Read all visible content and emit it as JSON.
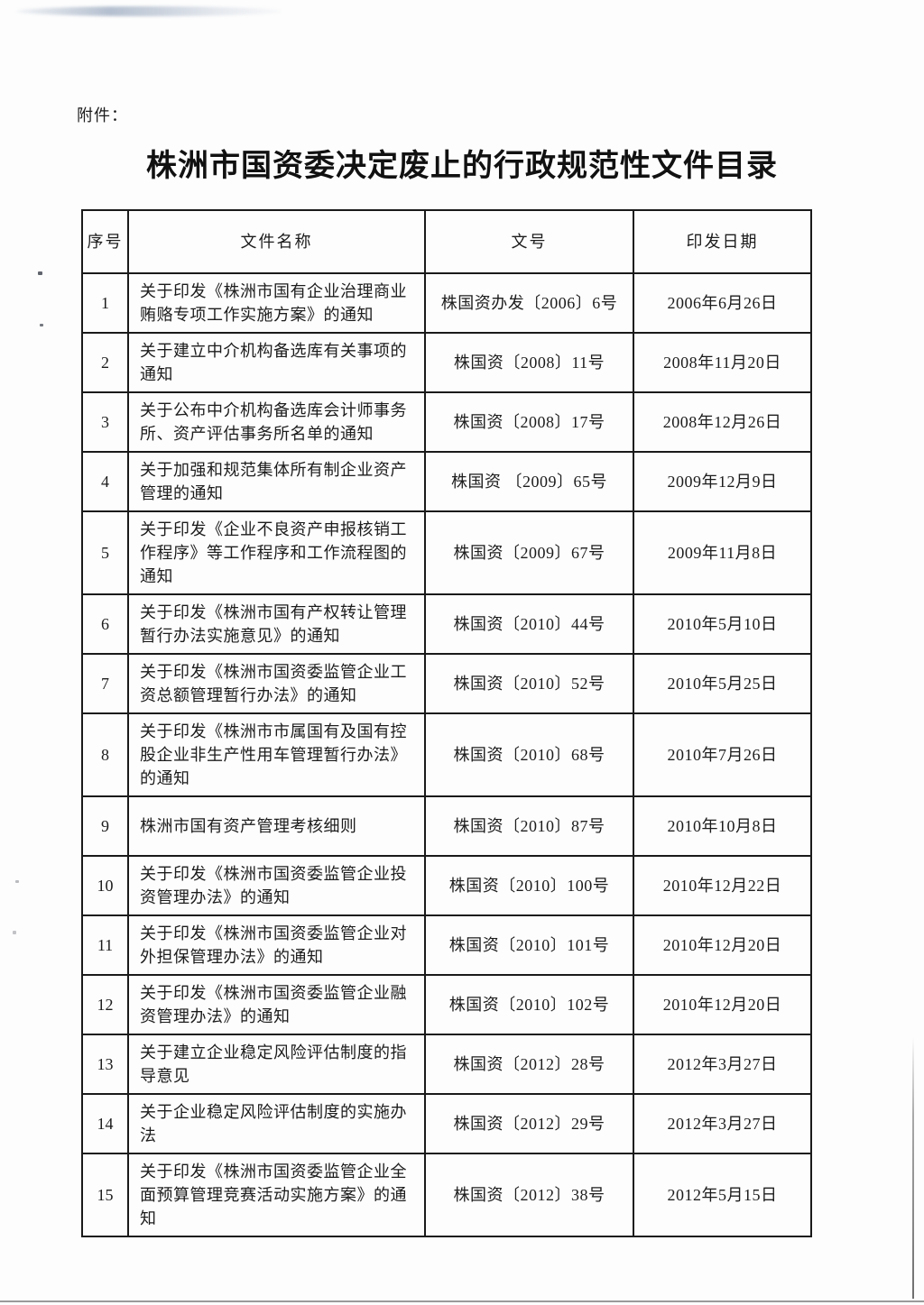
{
  "page": {
    "attachment_label": "附件：",
    "title": "株洲市国资委决定废止的行政规范性文件目录"
  },
  "table": {
    "headers": {
      "no": "序号",
      "name": "文件名称",
      "doc_no": "文号",
      "date": "印发日期"
    },
    "rows": [
      {
        "no": "1",
        "name": "关于印发《株洲市国有企业治理商业贿赂专项工作实施方案》的通知",
        "doc_no": "株国资办发〔2006〕6号",
        "date": "2006年6月26日"
      },
      {
        "no": "2",
        "name": "关于建立中介机构备选库有关事项的通知",
        "doc_no": "株国资〔2008〕11号",
        "date": "2008年11月20日"
      },
      {
        "no": "3",
        "name": "关于公布中介机构备选库会计师事务所、资产评估事务所名单的通知",
        "doc_no": "株国资〔2008〕17号",
        "date": "2008年12月26日"
      },
      {
        "no": "4",
        "name": "关于加强和规范集体所有制企业资产管理的通知",
        "doc_no": "株国资 〔2009〕65号",
        "date": "2009年12月9日"
      },
      {
        "no": "5",
        "name": "关于印发《企业不良资产申报核销工作程序》等工作程序和工作流程图的通知",
        "doc_no": "株国资〔2009〕67号",
        "date": "2009年11月8日"
      },
      {
        "no": "6",
        "name": "关于印发《株洲市国有产权转让管理暂行办法实施意见》的通知",
        "doc_no": "株国资〔2010〕44号",
        "date": "2010年5月10日"
      },
      {
        "no": "7",
        "name": "关于印发《株洲市国资委监管企业工资总额管理暂行办法》的通知",
        "doc_no": "株国资〔2010〕52号",
        "date": "2010年5月25日"
      },
      {
        "no": "8",
        "name": "关于印发《株洲市市属国有及国有控股企业非生产性用车管理暂行办法》的通知",
        "doc_no": "株国资〔2010〕68号",
        "date": "2010年7月26日"
      },
      {
        "no": "9",
        "name": "株洲市国有资产管理考核细则",
        "doc_no": "株国资〔2010〕87号",
        "date": "2010年10月8日"
      },
      {
        "no": "10",
        "name": "关于印发《株洲市国资委监管企业投资管理办法》的通知",
        "doc_no": "株国资〔2010〕100号",
        "date": "2010年12月22日"
      },
      {
        "no": "11",
        "name": "关于印发《株洲市国资委监管企业对外担保管理办法》的通知",
        "doc_no": "株国资〔2010〕101号",
        "date": "2010年12月20日"
      },
      {
        "no": "12",
        "name": "关于印发《株洲市国资委监管企业融资管理办法》的通知",
        "doc_no": "株国资〔2010〕102号",
        "date": "2010年12月20日"
      },
      {
        "no": "13",
        "name": "关于建立企业稳定风险评估制度的指导意见",
        "doc_no": "株国资〔2012〕28号",
        "date": "2012年3月27日"
      },
      {
        "no": "14",
        "name": "关于企业稳定风险评估制度的实施办法",
        "doc_no": "株国资〔2012〕29号",
        "date": "2012年3月27日"
      },
      {
        "no": "15",
        "name": "关于印发《株洲市国资委监管企业全面预算管理竞赛活动实施方案》的通知",
        "doc_no": "株国资〔2012〕38号",
        "date": "2012年5月15日"
      }
    ]
  }
}
